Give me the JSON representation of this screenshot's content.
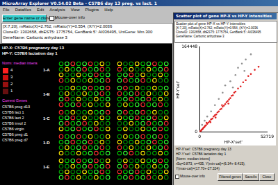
{
  "main_window": {
    "title": "MicroArray Explorer V0.54.02 Beta - C57B6 day 13 preg. vs lact. 1",
    "menu": [
      "File",
      "Datafiles",
      "Edit",
      "Analysis",
      "View",
      "Plugins",
      "Help"
    ],
    "button": "Enter gene name or clone ID",
    "checkbox": "Mouse-over info",
    "info": [
      "[X:7,20], mRatio(X)=2.762, mRatio(Y)=0.554, (X/Y)=2.0036",
      "CloneID: 1302658, dbEST5: 1775754, GenBank 5': AI036495, UniGene: Mm.300",
      "GeneName: Carbonic anhydrase 3"
    ],
    "legend": {
      "hp_x": "HP-X: C57B6 pregnancy day 13",
      "hp_y": "HP-Y: C57B6 lactation day 1",
      "norm": "Norm: median intens",
      "scale": [
        "4",
        "3",
        "2",
        "1"
      ],
      "current": "Current Genes",
      "samples": [
        "C57B6 preg d13",
        "C57B6 lact 1",
        "C57B6 lact 2",
        "C57B6 invol 2",
        "C57B6 virgin",
        "C57B6 preg d1",
        "C57B6 preg d7"
      ]
    },
    "blocks": [
      "1-A",
      "1-B",
      "1-C",
      "1-D",
      "1-E"
    ]
  },
  "scatter_window": {
    "title": "Scatter plot of gene HP-X vs HP-Y intensities",
    "heading": "Scatter plot of gene HP-X vs HP-Y intensities",
    "info": [
      "[X:7,20], mRatio(X)=2.762, mRatio(Y)=0.554, (X/Y)=2.0036",
      "CloneID: 1302658, dbEST5: 1775754, GenBank 5': AI036495",
      "GeneName: Carbonic anhydrase 3"
    ],
    "notes": [
      "HP-X'set': C57B6 pregnancy day 13",
      "HP-Y'set': C57B6 lactation day 1",
      "[Norm: median intens]",
      "rSq=0.873, n=435, Y(min-cal)=(6.34+-8.415),",
      "Y(max-cal)=(17.70+-27.324)"
    ],
    "checkbox": "Mouse-over info",
    "buttons": [
      "Filtered genes",
      "SaveAs",
      "Close"
    ]
  },
  "chart_data": {
    "type": "scatter",
    "xlabel": "HP-X'set'",
    "ylabel": "HP-Y'set'",
    "xlim": [
      0,
      52719
    ],
    "xticks": [
      0,
      52719
    ],
    "ylim": [
      0,
      164448
    ],
    "yticks": [
      0,
      164448
    ],
    "grid": false,
    "series": [
      {
        "color": "#e02020",
        "marker": "circle",
        "x": [
          500,
          1000,
          1500,
          2000,
          2500,
          3000,
          3500,
          4000,
          4500,
          5000,
          6000,
          7000,
          8000,
          9000,
          10000,
          11000,
          12000,
          13000,
          14000,
          15000,
          16000,
          17000,
          18000,
          19000,
          20000,
          21000,
          22000,
          23000,
          24000,
          25000,
          26000,
          27000,
          28000,
          30000,
          32000,
          34000,
          36000,
          38000,
          40000,
          43000,
          46000,
          5500,
          8500,
          12500,
          17500,
          22500
        ],
        "values": [
          1500,
          2200,
          4000,
          5200,
          6000,
          8200,
          9000,
          10500,
          12500,
          13000,
          16000,
          18500,
          21000,
          24500,
          26000,
          30000,
          32500,
          34000,
          38000,
          40000,
          43500,
          45000,
          49000,
          51000,
          54000,
          57500,
          60000,
          63000,
          65500,
          70000,
          71000,
          76000,
          78000,
          84000,
          88000,
          96000,
          100000,
          108000,
          112000,
          120000,
          126000,
          18000,
          19000,
          28000,
          52000,
          55000
        ]
      },
      {
        "color": "#909090",
        "marker": "circle",
        "x": [
          2000,
          4000,
          6000,
          9000,
          12000,
          15000,
          18000,
          20000,
          24000,
          28000,
          30000,
          33000,
          36000,
          40000,
          35000,
          26000
        ],
        "values": [
          14000,
          22000,
          30000,
          40000,
          52000,
          64000,
          76000,
          90000,
          98000,
          110000,
          124000,
          132000,
          140000,
          150000,
          118000,
          86000
        ]
      }
    ]
  }
}
